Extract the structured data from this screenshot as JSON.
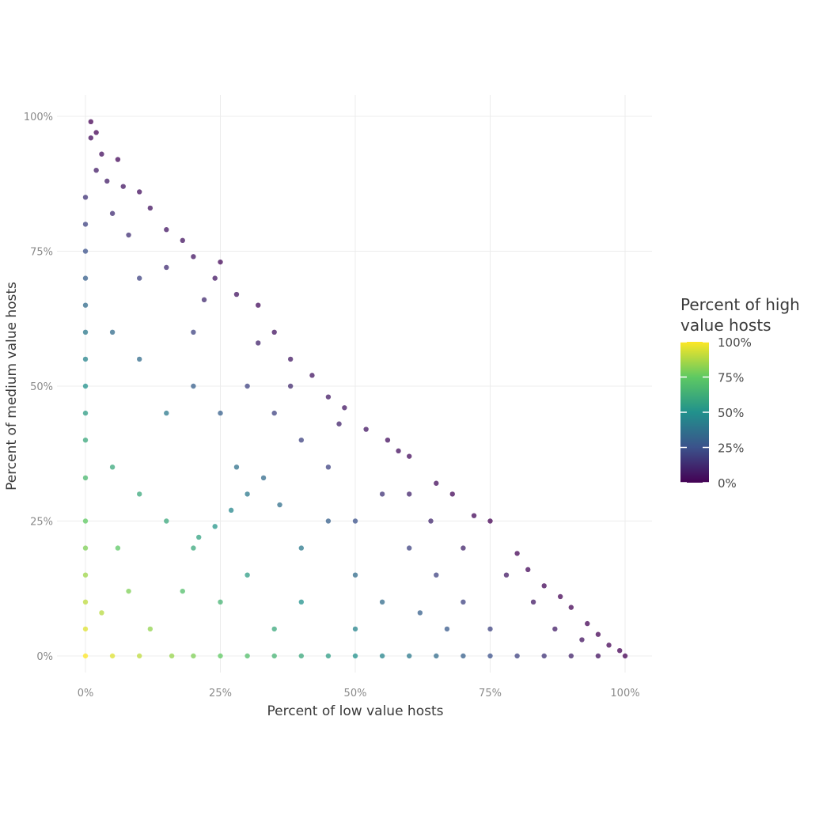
{
  "chart_data": {
    "type": "scatter",
    "title": "",
    "xlabel": "Percent of low value hosts",
    "ylabel": "Percent of medium value hosts",
    "xlim": [
      0,
      1
    ],
    "ylim": [
      0,
      1
    ],
    "x_ticks": [
      0,
      0.25,
      0.5,
      0.75,
      1
    ],
    "x_tick_labels": [
      "0%",
      "25%",
      "50%",
      "75%",
      "100%"
    ],
    "y_ticks": [
      0,
      0.25,
      0.5,
      0.75,
      1
    ],
    "y_tick_labels": [
      "0%",
      "25%",
      "50%",
      "75%",
      "100%"
    ],
    "grid": true,
    "color_encoding": "Percent of high value hosts = 1 - low - medium",
    "colorscale": [
      "#440154",
      "#3b528b",
      "#21918c",
      "#5ec962",
      "#fde725"
    ],
    "legend": {
      "title_lines": [
        "Percent of high",
        "value hosts"
      ],
      "placement": "right",
      "labels": [
        "100%",
        "75%",
        "50%",
        "25%",
        "0%"
      ],
      "values": [
        1,
        0.75,
        0.5,
        0.25,
        0
      ]
    },
    "points": [
      [
        0.01,
        0.99
      ],
      [
        0.02,
        0.97
      ],
      [
        0.01,
        0.96
      ],
      [
        0.03,
        0.93
      ],
      [
        0.06,
        0.92
      ],
      [
        0.02,
        0.9
      ],
      [
        0.07,
        0.87
      ],
      [
        0.1,
        0.86
      ],
      [
        0.12,
        0.83
      ],
      [
        0.0,
        0.85
      ],
      [
        0.0,
        0.8
      ],
      [
        0.05,
        0.82
      ],
      [
        0.15,
        0.79
      ],
      [
        0.18,
        0.77
      ],
      [
        0.2,
        0.74
      ],
      [
        0.25,
        0.73
      ],
      [
        0.24,
        0.7
      ],
      [
        0.28,
        0.67
      ],
      [
        0.32,
        0.65
      ],
      [
        0.35,
        0.6
      ],
      [
        0.38,
        0.55
      ],
      [
        0.42,
        0.52
      ],
      [
        0.45,
        0.48
      ],
      [
        0.48,
        0.46
      ],
      [
        0.52,
        0.42
      ],
      [
        0.56,
        0.4
      ],
      [
        0.6,
        0.37
      ],
      [
        0.65,
        0.32
      ],
      [
        0.68,
        0.3
      ],
      [
        0.72,
        0.26
      ],
      [
        0.75,
        0.25
      ],
      [
        0.8,
        0.19
      ],
      [
        0.82,
        0.16
      ],
      [
        0.85,
        0.13
      ],
      [
        0.88,
        0.11
      ],
      [
        0.9,
        0.09
      ],
      [
        0.93,
        0.06
      ],
      [
        0.95,
        0.04
      ],
      [
        0.97,
        0.02
      ],
      [
        0.99,
        0.01
      ],
      [
        1.0,
        0.0
      ],
      [
        0.0,
        0.75
      ],
      [
        0.0,
        0.7
      ],
      [
        0.0,
        0.65
      ],
      [
        0.0,
        0.6
      ],
      [
        0.0,
        0.55
      ],
      [
        0.0,
        0.5
      ],
      [
        0.0,
        0.45
      ],
      [
        0.0,
        0.4
      ],
      [
        0.0,
        0.33
      ],
      [
        0.0,
        0.25
      ],
      [
        0.0,
        0.2
      ],
      [
        0.0,
        0.15
      ],
      [
        0.0,
        0.1
      ],
      [
        0.0,
        0.05
      ],
      [
        0.0,
        0.0
      ],
      [
        0.05,
        0.0
      ],
      [
        0.1,
        0.0
      ],
      [
        0.16,
        0.0
      ],
      [
        0.2,
        0.0
      ],
      [
        0.25,
        0.0
      ],
      [
        0.3,
        0.0
      ],
      [
        0.35,
        0.0
      ],
      [
        0.4,
        0.0
      ],
      [
        0.45,
        0.0
      ],
      [
        0.5,
        0.0
      ],
      [
        0.55,
        0.0
      ],
      [
        0.6,
        0.0
      ],
      [
        0.65,
        0.0
      ],
      [
        0.7,
        0.0
      ],
      [
        0.75,
        0.0
      ],
      [
        0.8,
        0.0
      ],
      [
        0.85,
        0.0
      ],
      [
        0.9,
        0.0
      ],
      [
        0.95,
        0.0
      ],
      [
        0.33,
        0.33
      ],
      [
        0.3,
        0.3
      ],
      [
        0.27,
        0.27
      ],
      [
        0.24,
        0.24
      ],
      [
        0.21,
        0.22
      ],
      [
        0.36,
        0.28
      ],
      [
        0.4,
        0.2
      ],
      [
        0.5,
        0.25
      ],
      [
        0.5,
        0.15
      ],
      [
        0.5,
        0.05
      ],
      [
        0.55,
        0.1
      ],
      [
        0.6,
        0.2
      ],
      [
        0.62,
        0.08
      ],
      [
        0.67,
        0.05
      ],
      [
        0.64,
        0.25
      ],
      [
        0.7,
        0.1
      ],
      [
        0.45,
        0.35
      ],
      [
        0.4,
        0.4
      ],
      [
        0.3,
        0.5
      ],
      [
        0.2,
        0.5
      ],
      [
        0.15,
        0.45
      ],
      [
        0.1,
        0.55
      ],
      [
        0.05,
        0.6
      ],
      [
        0.1,
        0.7
      ],
      [
        0.2,
        0.6
      ],
      [
        0.25,
        0.45
      ],
      [
        0.35,
        0.45
      ],
      [
        0.45,
        0.25
      ],
      [
        0.3,
        0.15
      ],
      [
        0.2,
        0.2
      ],
      [
        0.1,
        0.3
      ],
      [
        0.05,
        0.35
      ],
      [
        0.15,
        0.25
      ],
      [
        0.25,
        0.1
      ],
      [
        0.35,
        0.05
      ],
      [
        0.4,
        0.1
      ],
      [
        0.08,
        0.12
      ],
      [
        0.12,
        0.05
      ],
      [
        0.03,
        0.08
      ],
      [
        0.06,
        0.2
      ],
      [
        0.18,
        0.12
      ],
      [
        0.28,
        0.35
      ],
      [
        0.55,
        0.3
      ],
      [
        0.6,
        0.3
      ],
      [
        0.7,
        0.2
      ],
      [
        0.78,
        0.15
      ],
      [
        0.83,
        0.1
      ],
      [
        0.87,
        0.05
      ],
      [
        0.92,
        0.03
      ],
      [
        0.75,
        0.05
      ],
      [
        0.65,
        0.15
      ],
      [
        0.58,
        0.38
      ],
      [
        0.47,
        0.43
      ],
      [
        0.38,
        0.5
      ],
      [
        0.32,
        0.58
      ],
      [
        0.22,
        0.66
      ],
      [
        0.15,
        0.72
      ],
      [
        0.08,
        0.78
      ],
      [
        0.04,
        0.88
      ]
    ]
  }
}
